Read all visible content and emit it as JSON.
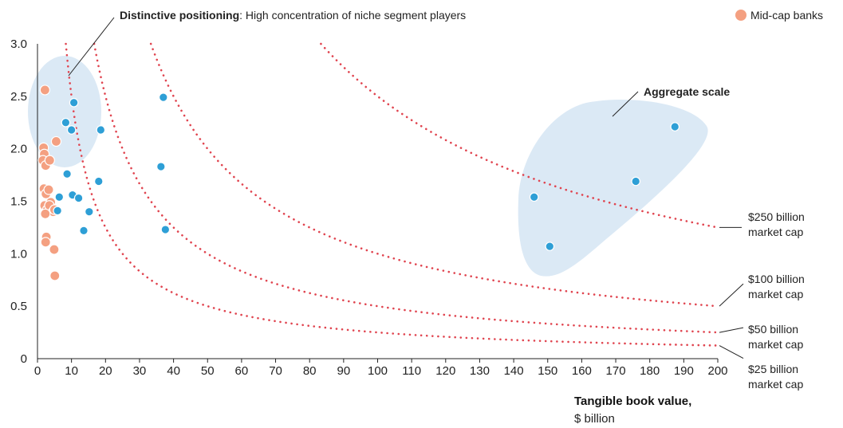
{
  "chart_data": {
    "type": "scatter",
    "xlabel_bold": "Tangible book value,",
    "xlabel_unit": "$ billion",
    "xlim": [
      0,
      200
    ],
    "ylim": [
      0,
      3.0
    ],
    "x_ticks": [
      "0",
      "10",
      "20",
      "30",
      "40",
      "50",
      "60",
      "70",
      "80",
      "90",
      "100",
      "110",
      "120",
      "130",
      "140",
      "150",
      "160",
      "170",
      "180",
      "190",
      "200"
    ],
    "y_ticks": [
      "0",
      "0.5",
      "1.0",
      "1.5",
      "2.0",
      "2.5",
      "3.0"
    ],
    "legend": {
      "label": "Mid-cap banks",
      "color": "#f4a081",
      "placement": "top-right"
    },
    "series": [
      {
        "name": "Mid-cap banks",
        "color": "#f4a081",
        "points": [
          {
            "x": 2.2,
            "y": 2.56
          },
          {
            "x": 1.8,
            "y": 2.01
          },
          {
            "x": 2.0,
            "y": 1.95
          },
          {
            "x": 1.6,
            "y": 1.89
          },
          {
            "x": 2.4,
            "y": 1.84
          },
          {
            "x": 3.6,
            "y": 1.89
          },
          {
            "x": 5.5,
            "y": 2.07
          },
          {
            "x": 1.9,
            "y": 1.62
          },
          {
            "x": 2.5,
            "y": 1.57
          },
          {
            "x": 3.3,
            "y": 1.61
          },
          {
            "x": 3.9,
            "y": 1.49
          },
          {
            "x": 2.1,
            "y": 1.46
          },
          {
            "x": 2.9,
            "y": 1.42
          },
          {
            "x": 3.5,
            "y": 1.46
          },
          {
            "x": 4.6,
            "y": 1.4
          },
          {
            "x": 2.3,
            "y": 1.38
          },
          {
            "x": 5.0,
            "y": 1.42
          },
          {
            "x": 2.6,
            "y": 1.16
          },
          {
            "x": 2.4,
            "y": 1.11
          },
          {
            "x": 4.9,
            "y": 1.04
          },
          {
            "x": 5.1,
            "y": 0.79
          }
        ]
      },
      {
        "name": "",
        "color": "#2e9fd6",
        "points": [
          {
            "x": 8.3,
            "y": 2.25
          },
          {
            "x": 10.7,
            "y": 2.44
          },
          {
            "x": 10.0,
            "y": 2.18
          },
          {
            "x": 18.6,
            "y": 2.18
          },
          {
            "x": 8.7,
            "y": 1.76
          },
          {
            "x": 18.0,
            "y": 1.69
          },
          {
            "x": 6.4,
            "y": 1.54
          },
          {
            "x": 10.3,
            "y": 1.56
          },
          {
            "x": 12.1,
            "y": 1.53
          },
          {
            "x": 5.9,
            "y": 1.41
          },
          {
            "x": 15.2,
            "y": 1.4
          },
          {
            "x": 13.6,
            "y": 1.22
          },
          {
            "x": 37.0,
            "y": 2.49
          },
          {
            "x": 36.3,
            "y": 1.83
          },
          {
            "x": 37.6,
            "y": 1.23
          },
          {
            "x": 146.0,
            "y": 1.54
          },
          {
            "x": 150.6,
            "y": 1.07
          },
          {
            "x": 175.9,
            "y": 1.69
          },
          {
            "x": 187.4,
            "y": 2.21
          }
        ]
      }
    ],
    "curves": [
      {
        "cap": 250,
        "label_line1": "$250 billion",
        "label_line2": "market cap",
        "color": "#e0444f"
      },
      {
        "cap": 100,
        "label_line1": "$100 billion",
        "label_line2": "market cap",
        "color": "#e0444f"
      },
      {
        "cap": 50,
        "label_line1": "$50 billion",
        "label_line2": "market cap",
        "color": "#e0444f"
      },
      {
        "cap": 25,
        "label_line1": "$25 billion",
        "label_line2": "market cap",
        "color": "#e0444f"
      }
    ],
    "annotations": {
      "niche_bold": "Distinctive positioning",
      "niche_rest": ": High concentration of niche segment players",
      "scale": "Aggregate scale"
    }
  },
  "colors": {
    "highlight": "#dbe9f5",
    "axis": "#222222",
    "grid_text": "#222222"
  }
}
